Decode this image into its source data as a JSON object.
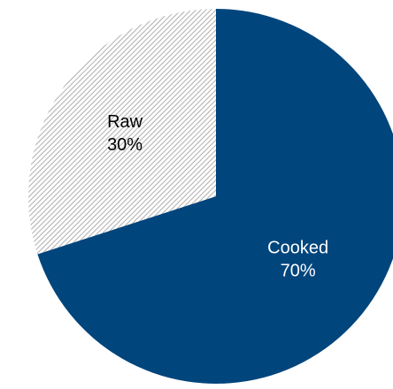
{
  "chart_data": {
    "type": "pie",
    "title": "",
    "start": "12 o'clock, clockwise",
    "slices": [
      {
        "label": "Cooked",
        "value": 70,
        "value_label": "70%",
        "fill": "solid",
        "color": "#00457c",
        "label_color": "#ffffff"
      },
      {
        "label": "Raw",
        "value": 30,
        "value_label": "30%",
        "fill": "hatched",
        "color": "#9a9a9a",
        "background": "#ffffff",
        "label_color": "#000000"
      }
    ]
  }
}
